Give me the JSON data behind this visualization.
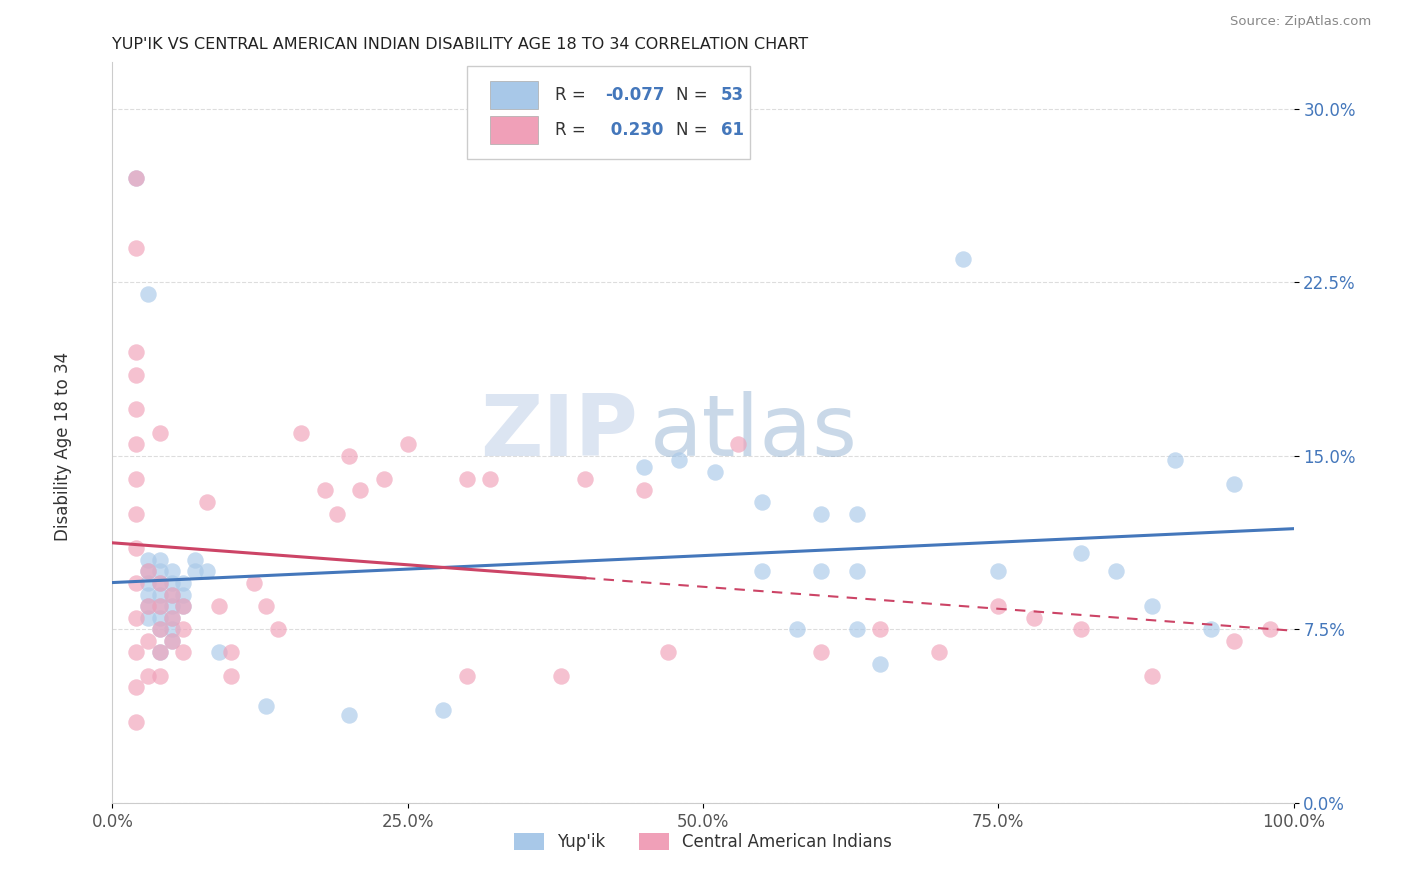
{
  "title": "YUP'IK VS CENTRAL AMERICAN INDIAN DISABILITY AGE 18 TO 34 CORRELATION CHART",
  "source": "Source: ZipAtlas.com",
  "ylabel": "Disability Age 18 to 34",
  "xlim": [
    0.0,
    1.0
  ],
  "ylim": [
    0.0,
    0.32
  ],
  "xticks": [
    0.0,
    0.25,
    0.5,
    0.75,
    1.0
  ],
  "xtick_labels": [
    "0.0%",
    "25.0%",
    "50.0%",
    "75.0%",
    "100.0%"
  ],
  "yticks": [
    0.0,
    0.075,
    0.15,
    0.225,
    0.3
  ],
  "ytick_labels": [
    "0.0%",
    "7.5%",
    "15.0%",
    "22.5%",
    "30.0%"
  ],
  "r_yupik": -0.077,
  "n_yupik": 53,
  "r_central": 0.23,
  "n_central": 61,
  "legend_labels": [
    "Yup'ik",
    "Central American Indians"
  ],
  "yupik_color": "#a8c8e8",
  "central_color": "#f0a0b8",
  "yupik_line_color": "#4477bb",
  "central_line_color": "#cc4466",
  "watermark_zip": "ZIP",
  "watermark_atlas": "atlas",
  "background_color": "#ffffff",
  "grid_color": "#dddddd",
  "yupik_scatter": [
    [
      0.02,
      0.27
    ],
    [
      0.03,
      0.22
    ],
    [
      0.03,
      0.105
    ],
    [
      0.03,
      0.1
    ],
    [
      0.03,
      0.095
    ],
    [
      0.03,
      0.09
    ],
    [
      0.03,
      0.085
    ],
    [
      0.03,
      0.08
    ],
    [
      0.04,
      0.105
    ],
    [
      0.04,
      0.1
    ],
    [
      0.04,
      0.095
    ],
    [
      0.04,
      0.09
    ],
    [
      0.04,
      0.085
    ],
    [
      0.04,
      0.08
    ],
    [
      0.04,
      0.075
    ],
    [
      0.04,
      0.065
    ],
    [
      0.05,
      0.1
    ],
    [
      0.05,
      0.095
    ],
    [
      0.05,
      0.09
    ],
    [
      0.05,
      0.085
    ],
    [
      0.05,
      0.08
    ],
    [
      0.05,
      0.075
    ],
    [
      0.05,
      0.07
    ],
    [
      0.06,
      0.095
    ],
    [
      0.06,
      0.09
    ],
    [
      0.06,
      0.085
    ],
    [
      0.07,
      0.105
    ],
    [
      0.07,
      0.1
    ],
    [
      0.08,
      0.1
    ],
    [
      0.09,
      0.065
    ],
    [
      0.13,
      0.042
    ],
    [
      0.2,
      0.038
    ],
    [
      0.28,
      0.04
    ],
    [
      0.45,
      0.145
    ],
    [
      0.48,
      0.148
    ],
    [
      0.51,
      0.143
    ],
    [
      0.55,
      0.13
    ],
    [
      0.6,
      0.125
    ],
    [
      0.63,
      0.125
    ],
    [
      0.55,
      0.1
    ],
    [
      0.6,
      0.1
    ],
    [
      0.63,
      0.1
    ],
    [
      0.58,
      0.075
    ],
    [
      0.63,
      0.075
    ],
    [
      0.65,
      0.06
    ],
    [
      0.72,
      0.235
    ],
    [
      0.75,
      0.1
    ],
    [
      0.82,
      0.108
    ],
    [
      0.85,
      0.1
    ],
    [
      0.88,
      0.085
    ],
    [
      0.9,
      0.148
    ],
    [
      0.93,
      0.075
    ],
    [
      0.95,
      0.138
    ]
  ],
  "central_scatter": [
    [
      0.02,
      0.27
    ],
    [
      0.02,
      0.24
    ],
    [
      0.02,
      0.195
    ],
    [
      0.02,
      0.185
    ],
    [
      0.02,
      0.17
    ],
    [
      0.02,
      0.155
    ],
    [
      0.02,
      0.14
    ],
    [
      0.02,
      0.125
    ],
    [
      0.02,
      0.11
    ],
    [
      0.02,
      0.095
    ],
    [
      0.02,
      0.08
    ],
    [
      0.02,
      0.065
    ],
    [
      0.02,
      0.05
    ],
    [
      0.02,
      0.035
    ],
    [
      0.03,
      0.1
    ],
    [
      0.03,
      0.085
    ],
    [
      0.03,
      0.07
    ],
    [
      0.03,
      0.055
    ],
    [
      0.04,
      0.16
    ],
    [
      0.04,
      0.095
    ],
    [
      0.04,
      0.085
    ],
    [
      0.04,
      0.075
    ],
    [
      0.04,
      0.065
    ],
    [
      0.04,
      0.055
    ],
    [
      0.05,
      0.09
    ],
    [
      0.05,
      0.08
    ],
    [
      0.05,
      0.07
    ],
    [
      0.06,
      0.085
    ],
    [
      0.06,
      0.075
    ],
    [
      0.06,
      0.065
    ],
    [
      0.08,
      0.13
    ],
    [
      0.09,
      0.085
    ],
    [
      0.1,
      0.065
    ],
    [
      0.1,
      0.055
    ],
    [
      0.12,
      0.095
    ],
    [
      0.13,
      0.085
    ],
    [
      0.14,
      0.075
    ],
    [
      0.16,
      0.16
    ],
    [
      0.18,
      0.135
    ],
    [
      0.19,
      0.125
    ],
    [
      0.2,
      0.15
    ],
    [
      0.21,
      0.135
    ],
    [
      0.23,
      0.14
    ],
    [
      0.25,
      0.155
    ],
    [
      0.3,
      0.055
    ],
    [
      0.3,
      0.14
    ],
    [
      0.32,
      0.14
    ],
    [
      0.38,
      0.055
    ],
    [
      0.4,
      0.14
    ],
    [
      0.45,
      0.135
    ],
    [
      0.47,
      0.065
    ],
    [
      0.53,
      0.155
    ],
    [
      0.6,
      0.065
    ],
    [
      0.65,
      0.075
    ],
    [
      0.7,
      0.065
    ],
    [
      0.75,
      0.085
    ],
    [
      0.78,
      0.08
    ],
    [
      0.82,
      0.075
    ],
    [
      0.88,
      0.055
    ],
    [
      0.95,
      0.07
    ],
    [
      0.98,
      0.075
    ]
  ]
}
